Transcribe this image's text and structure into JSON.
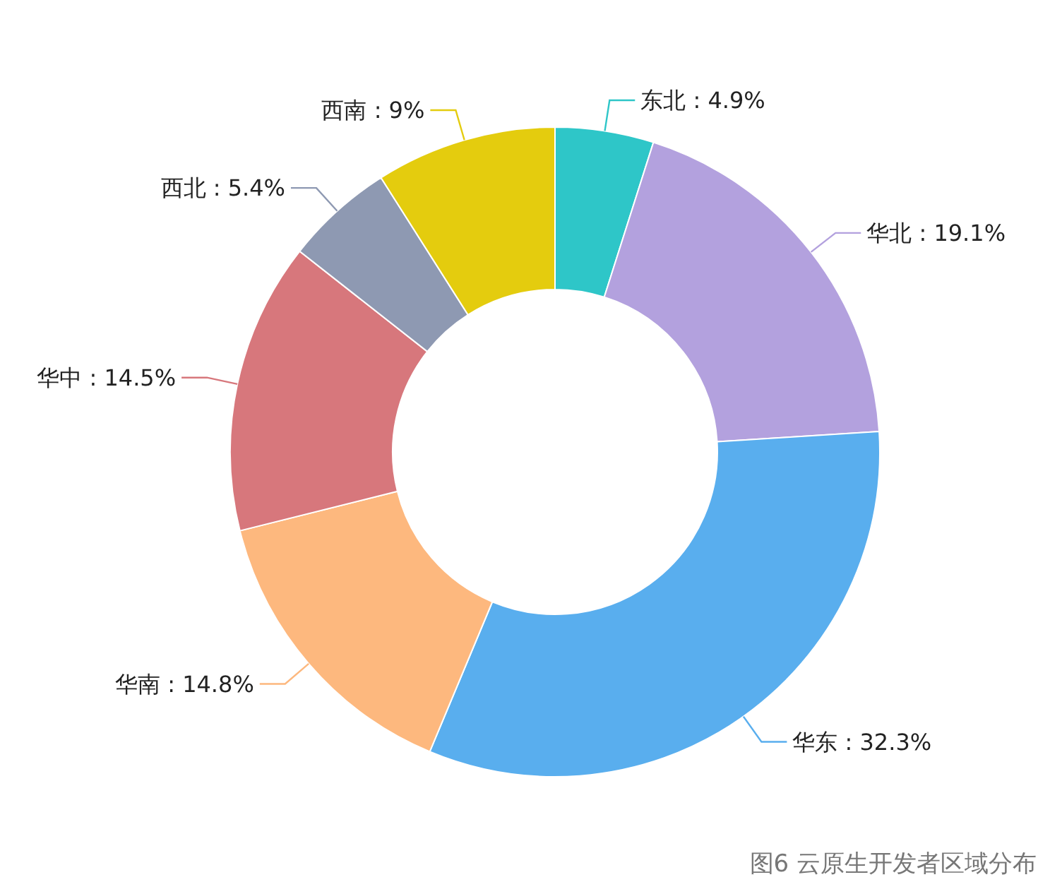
{
  "chart_data": {
    "type": "donut",
    "categories": [
      "东北",
      "华北",
      "华东",
      "华南",
      "华中",
      "西北",
      "西南"
    ],
    "values": [
      4.9,
      19.1,
      32.3,
      14.8,
      14.5,
      5.4,
      9
    ],
    "value_labels": [
      "4.9%",
      "19.1%",
      "32.3%",
      "14.8%",
      "14.5%",
      "5.4%",
      "9%"
    ],
    "colors": [
      "#2ec6c8",
      "#b3a1de",
      "#59aeee",
      "#fdb87e",
      "#d7777c",
      "#8e99b2",
      "#e4cc0e"
    ],
    "legend": false,
    "annotations": [
      "图6  云原生开发者区域分布"
    ]
  }
}
